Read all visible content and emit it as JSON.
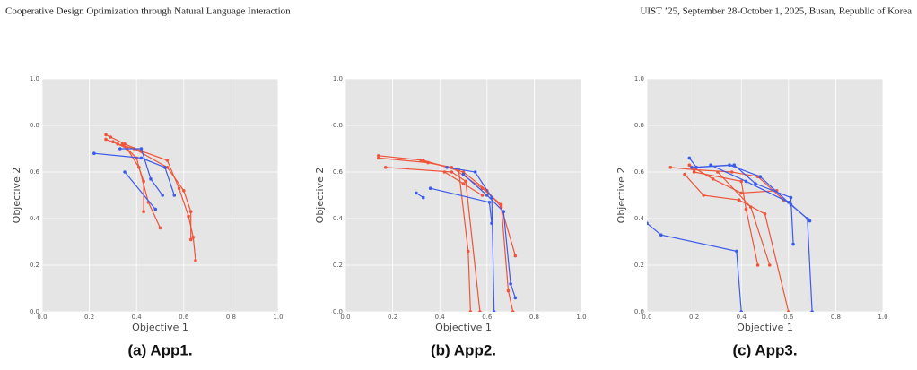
{
  "header": {
    "left": "Cooperative Design Optimization through Natural Language Interaction",
    "right": "UIST ’25, September 28-October 1, 2025, Busan, Republic of Korea"
  },
  "chart_data": [
    {
      "type": "line",
      "caption": "(a) App1.",
      "xlabel": "Objective 1",
      "ylabel": "Objective 2",
      "xlim": [
        0,
        1
      ],
      "ylim": [
        0,
        1
      ],
      "grid": true,
      "xticks": [
        {
          "value": 0,
          "label": "0.0"
        },
        0.2,
        0.4,
        0.6,
        0.8,
        {
          "value": 1,
          "label": "1.0"
        }
      ],
      "yticks": [
        {
          "value": 0,
          "label": "0.0"
        },
        0.2,
        0.4,
        0.6,
        0.8,
        {
          "value": 1,
          "label": "1.0"
        }
      ],
      "series": [
        {
          "color": "#ef553b",
          "x": [
            0.27,
            0.29,
            0.35,
            0.42,
            0.53,
            0.58,
            0.62,
            0.64,
            0.65
          ],
          "values": [
            0.76,
            0.75,
            0.72,
            0.69,
            0.65,
            0.53,
            0.41,
            0.32,
            0.22
          ]
        },
        {
          "color": "#ef553b",
          "x": [
            0.27,
            0.32,
            0.39,
            0.53,
            0.6,
            0.63,
            0.63
          ],
          "values": [
            0.74,
            0.72,
            0.7,
            0.62,
            0.52,
            0.43,
            0.31
          ]
        },
        {
          "color": "#ef553b",
          "x": [
            0.3,
            0.36,
            0.41,
            0.43,
            0.43
          ],
          "values": [
            0.73,
            0.7,
            0.62,
            0.56,
            0.43
          ]
        },
        {
          "color": "#ef553b",
          "x": [
            0.34,
            0.4,
            0.45,
            0.5
          ],
          "values": [
            0.72,
            0.66,
            0.47,
            0.36
          ]
        },
        {
          "color": "#3d5bea",
          "x": [
            0.22,
            0.42,
            0.52,
            0.56
          ],
          "values": [
            0.68,
            0.66,
            0.62,
            0.5
          ]
        },
        {
          "color": "#3d5bea",
          "x": [
            0.33,
            0.42,
            0.46,
            0.51
          ],
          "values": [
            0.7,
            0.7,
            0.57,
            0.5
          ]
        },
        {
          "color": "#3d5bea",
          "x": [
            0.35,
            0.48
          ],
          "values": [
            0.6,
            0.44
          ]
        }
      ]
    },
    {
      "type": "line",
      "caption": "(b) App2.",
      "xlabel": "Objective 1",
      "ylabel": "Objective 2",
      "xlim": [
        0,
        1
      ],
      "ylim": [
        0,
        1
      ],
      "grid": true,
      "xticks": [
        {
          "value": 0,
          "label": "0.0"
        },
        0.2,
        0.4,
        0.6,
        0.8,
        {
          "value": 1,
          "label": "1.0"
        }
      ],
      "yticks": [
        {
          "value": 0,
          "label": "0.0"
        },
        0.2,
        0.4,
        0.6,
        0.8,
        {
          "value": 1,
          "label": "1.0"
        }
      ],
      "series": [
        {
          "color": "#ef553b",
          "x": [
            0.14,
            0.33,
            0.5,
            0.6,
            0.66,
            0.72
          ],
          "values": [
            0.67,
            0.65,
            0.6,
            0.52,
            0.45,
            0.24
          ]
        },
        {
          "color": "#ef553b",
          "x": [
            0.14,
            0.35,
            0.45,
            0.58,
            0.66,
            0.69,
            0.71
          ],
          "values": [
            0.66,
            0.64,
            0.62,
            0.53,
            0.46,
            0.09,
            0
          ]
        },
        {
          "color": "#ef553b",
          "x": [
            0.17,
            0.45,
            0.51,
            0.57
          ],
          "values": [
            0.62,
            0.6,
            0.56,
            0
          ]
        },
        {
          "color": "#ef553b",
          "x": [
            0.32,
            0.48,
            0.52,
            0.53
          ],
          "values": [
            0.65,
            0.61,
            0.26,
            0
          ]
        },
        {
          "color": "#ef553b",
          "x": [
            0.42,
            0.5,
            0.58
          ],
          "values": [
            0.6,
            0.55,
            0.5
          ]
        },
        {
          "color": "#3d5bea",
          "x": [
            0.43,
            0.55,
            0.62,
            0.63
          ],
          "values": [
            0.62,
            0.6,
            0.49,
            0
          ]
        },
        {
          "color": "#3d5bea",
          "x": [
            0.36,
            0.61,
            0.62
          ],
          "values": [
            0.53,
            0.47,
            0.38
          ]
        },
        {
          "color": "#3d5bea",
          "x": [
            0.3,
            0.33
          ],
          "values": [
            0.51,
            0.49
          ]
        },
        {
          "color": "#3d5bea",
          "x": [
            0.5,
            0.6,
            0.67,
            0.7,
            0.72
          ],
          "values": [
            0.59,
            0.5,
            0.43,
            0.12,
            0.06
          ]
        }
      ]
    },
    {
      "type": "line",
      "caption": "(c) App3.",
      "xlabel": "Objective 1",
      "ylabel": "Objective 2",
      "xlim": [
        0,
        1
      ],
      "ylim": [
        0,
        1
      ],
      "grid": true,
      "xticks": [
        {
          "value": 0,
          "label": "0.0"
        },
        0.2,
        0.4,
        0.6,
        0.8,
        {
          "value": 1,
          "label": "1.0"
        }
      ],
      "yticks": [
        {
          "value": 0,
          "label": "0.0"
        },
        0.2,
        0.4,
        0.6,
        0.8,
        {
          "value": 1,
          "label": "1.0"
        }
      ],
      "series": [
        {
          "color": "#ef553b",
          "x": [
            0.1,
            0.2,
            0.36,
            0.47,
            0.58
          ],
          "values": [
            0.62,
            0.61,
            0.6,
            0.58,
            0.48
          ]
        },
        {
          "color": "#ef553b",
          "x": [
            0.18,
            0.28,
            0.4,
            0.55
          ],
          "values": [
            0.63,
            0.57,
            0.51,
            0.52
          ]
        },
        {
          "color": "#ef553b",
          "x": [
            0.16,
            0.24,
            0.39,
            0.5,
            0.6
          ],
          "values": [
            0.59,
            0.5,
            0.48,
            0.42,
            0
          ]
        },
        {
          "color": "#ef553b",
          "x": [
            0.2,
            0.4,
            0.42,
            0.47
          ],
          "values": [
            0.6,
            0.56,
            0.44,
            0.2
          ]
        },
        {
          "color": "#ef553b",
          "x": [
            0.3,
            0.44,
            0.52
          ],
          "values": [
            0.6,
            0.45,
            0.2
          ]
        },
        {
          "color": "#3d5bea",
          "x": [
            0.18,
            0.21,
            0.37,
            0.46,
            0.61,
            0.62
          ],
          "values": [
            0.66,
            0.62,
            0.63,
            0.55,
            0.49,
            0.29
          ]
        },
        {
          "color": "#3d5bea",
          "x": [
            0.27,
            0.42,
            0.6,
            0.68,
            0.7
          ],
          "values": [
            0.63,
            0.56,
            0.47,
            0.4,
            0
          ]
        },
        {
          "color": "#3d5bea",
          "x": [
            0,
            0.06,
            0.38,
            0.4
          ],
          "values": [
            0.38,
            0.33,
            0.26,
            0
          ]
        },
        {
          "color": "#3d5bea",
          "x": [
            0.19,
            0.35,
            0.48,
            0.61,
            0.69
          ],
          "values": [
            0.62,
            0.63,
            0.58,
            0.46,
            0.39
          ]
        }
      ]
    }
  ]
}
